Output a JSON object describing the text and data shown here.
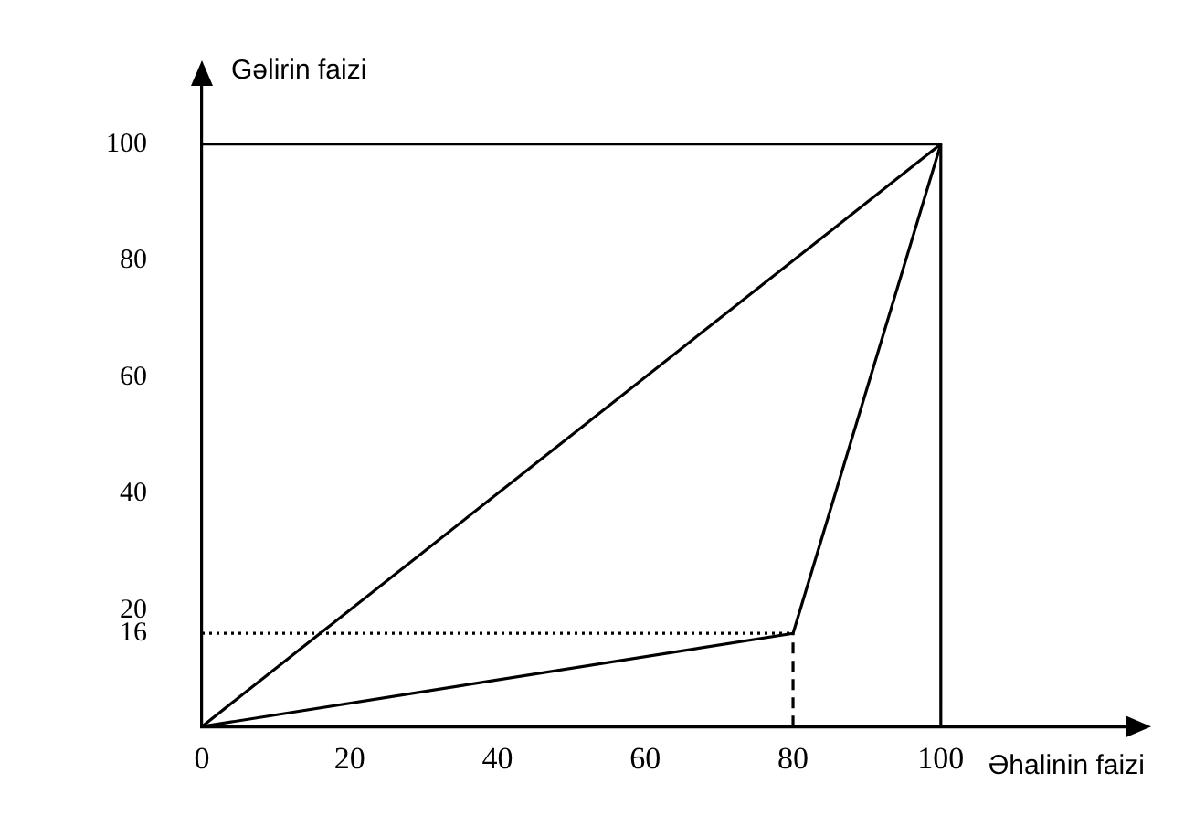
{
  "chart_data": {
    "type": "line",
    "xlabel": "Əhalinin faizi",
    "ylabel": "Gəlirin faizi",
    "xlim": [
      0,
      125
    ],
    "ylim": [
      0,
      110
    ],
    "xticks": [
      0,
      20,
      40,
      60,
      80,
      100
    ],
    "yticks": [
      16,
      20,
      40,
      60,
      80,
      100
    ],
    "grid": false,
    "legend": false,
    "marker": "none",
    "series": [
      {
        "color": "#000000",
        "x": [
          0,
          100
        ],
        "values": [
          0,
          100
        ],
        "line_style": "solid"
      },
      {
        "color": "#000000",
        "x": [
          0,
          80,
          100
        ],
        "values": [
          0,
          16,
          100
        ],
        "line_style": "solid"
      },
      {
        "color": "#000000",
        "x": [
          0,
          100,
          100
        ],
        "values": [
          100,
          100,
          0
        ],
        "line_style": "solid"
      },
      {
        "color": "#000000",
        "x": [
          0,
          80
        ],
        "values": [
          16,
          16
        ],
        "line_style": "dotted"
      },
      {
        "color": "#000000",
        "x": [
          80,
          80
        ],
        "values": [
          0,
          16
        ],
        "line_style": "dashed"
      }
    ]
  }
}
